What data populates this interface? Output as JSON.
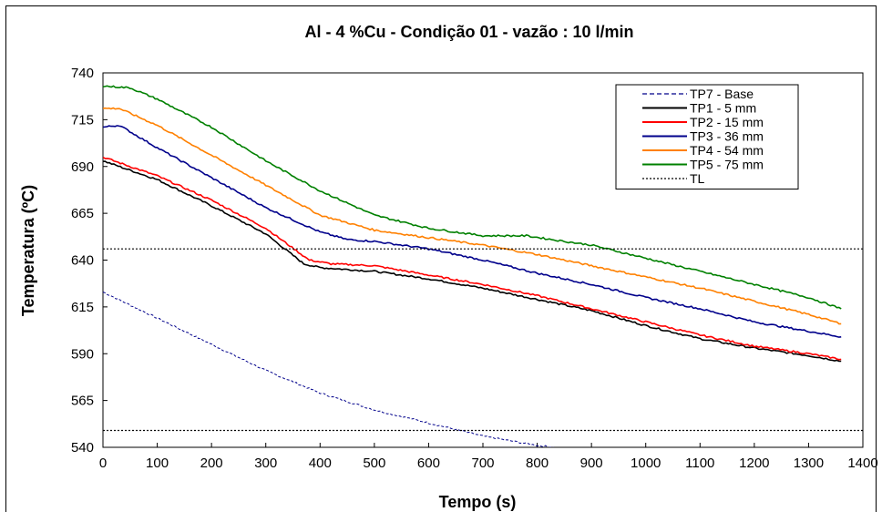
{
  "chart_data": {
    "type": "line",
    "title": "Al - 4 %Cu   -   Condição 01  -  vazão : 10 l/min",
    "xlabel": "Tempo (s)",
    "ylabel": "Temperatura (ºC)",
    "xlim": [
      0,
      1400
    ],
    "ylim": [
      540,
      740
    ],
    "xticks": [
      0,
      100,
      200,
      300,
      400,
      500,
      600,
      700,
      800,
      900,
      1000,
      1100,
      1200,
      1300,
      1400
    ],
    "yticks": [
      540,
      565,
      590,
      615,
      640,
      665,
      690,
      715,
      740
    ],
    "x_tick_labels": [
      "0",
      "100",
      "200",
      "300",
      "400",
      "500",
      "600",
      "700",
      "800",
      "900",
      "1000",
      "1100",
      "1200",
      "1300",
      "1400"
    ],
    "y_tick_labels": [
      "540",
      "565",
      "590",
      "615",
      "640",
      "665",
      "690",
      "715",
      "740"
    ],
    "grid": false,
    "legend_position": "top-right",
    "series": [
      {
        "name": "TP7 - Base",
        "color": "#00008B",
        "style": "dashed",
        "x": [
          0,
          100,
          200,
          300,
          400,
          500,
          600,
          700,
          800,
          830
        ],
        "y": [
          623,
          609,
          595,
          581,
          569,
          560,
          553,
          546,
          541,
          540
        ]
      },
      {
        "name": "TP1 - 5 mm",
        "color": "#000000",
        "style": "solid",
        "x": [
          0,
          100,
          200,
          300,
          370,
          400,
          500,
          600,
          700,
          800,
          900,
          1000,
          1100,
          1200,
          1300,
          1360
        ],
        "y": [
          693,
          683,
          669,
          654,
          638,
          636,
          634,
          630,
          625,
          619,
          613,
          605,
          598,
          593,
          589,
          586
        ]
      },
      {
        "name": "TP2 - 15 mm",
        "color": "#FF0000",
        "style": "solid",
        "x": [
          0,
          100,
          200,
          300,
          380,
          420,
          500,
          600,
          700,
          800,
          900,
          1000,
          1100,
          1200,
          1300,
          1360
        ],
        "y": [
          695,
          685,
          672,
          657,
          640,
          638,
          637,
          632,
          627,
          621,
          614,
          607,
          600,
          594,
          590,
          587
        ]
      },
      {
        "name": "TP3 - 36 mm",
        "color": "#00008B",
        "style": "solid",
        "x": [
          0,
          30,
          100,
          200,
          300,
          400,
          450,
          500,
          600,
          700,
          800,
          900,
          1000,
          1100,
          1200,
          1300,
          1360
        ],
        "y": [
          711,
          712,
          700,
          684,
          668,
          655,
          651,
          650,
          646,
          640,
          633,
          627,
          620,
          614,
          607,
          602,
          599
        ]
      },
      {
        "name": "TP4 - 54 mm",
        "color": "#FF8000",
        "style": "solid",
        "x": [
          0,
          30,
          100,
          200,
          300,
          400,
          500,
          600,
          700,
          800,
          900,
          1000,
          1100,
          1200,
          1300,
          1360
        ],
        "y": [
          721,
          721,
          712,
          696,
          680,
          664,
          656,
          652,
          648,
          643,
          637,
          631,
          625,
          618,
          611,
          606
        ]
      },
      {
        "name": "TP5 - 75 mm",
        "color": "#008000",
        "style": "solid",
        "x": [
          0,
          50,
          100,
          200,
          300,
          400,
          500,
          600,
          700,
          780,
          850,
          900,
          1000,
          1100,
          1200,
          1300,
          1360
        ],
        "y": [
          733,
          732,
          726,
          711,
          693,
          677,
          664,
          657,
          653,
          653,
          650,
          648,
          641,
          634,
          627,
          620,
          614
        ]
      },
      {
        "name": "TL",
        "color": "#000000",
        "style": "dotted",
        "x": [
          0,
          1400,
          0,
          1400
        ],
        "y": [
          646,
          646,
          549,
          549
        ]
      }
    ]
  }
}
